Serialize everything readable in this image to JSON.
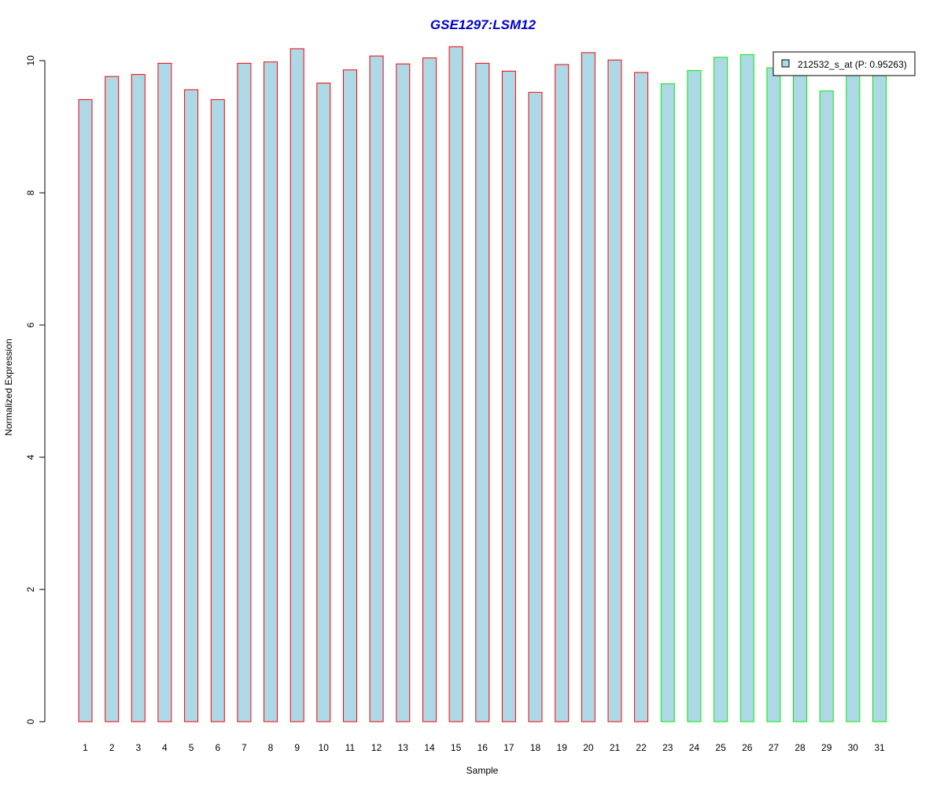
{
  "chart_data": {
    "type": "bar",
    "title": "GSE1297:LSM12",
    "xlabel": "Sample",
    "ylabel": "Normalized Expression",
    "ylim": [
      0,
      10
    ],
    "yticks": [
      "0",
      "2",
      "4",
      "6",
      "8",
      "10"
    ],
    "categories": [
      "1",
      "2",
      "3",
      "4",
      "5",
      "6",
      "7",
      "8",
      "9",
      "10",
      "11",
      "12",
      "13",
      "14",
      "15",
      "16",
      "17",
      "18",
      "19",
      "20",
      "21",
      "22",
      "23",
      "24",
      "25",
      "26",
      "27",
      "28",
      "29",
      "30",
      "31"
    ],
    "series": [
      {
        "name": "212532_s_at (P: 0.95263)",
        "values": [
          9.41,
          9.76,
          9.79,
          9.96,
          9.56,
          9.41,
          9.96,
          9.98,
          10.18,
          9.66,
          9.86,
          10.07,
          9.95,
          10.04,
          10.21,
          9.96,
          9.84,
          9.52,
          9.94,
          10.12,
          10.01,
          9.82,
          9.65,
          9.85,
          10.05,
          10.09,
          9.89,
          9.83,
          9.54,
          9.8,
          9.8
        ]
      }
    ],
    "group_colors": [
      "#ff0000",
      "#ff0000",
      "#ff0000",
      "#ff0000",
      "#ff0000",
      "#ff0000",
      "#ff0000",
      "#ff0000",
      "#ff0000",
      "#ff0000",
      "#ff0000",
      "#ff0000",
      "#ff0000",
      "#ff0000",
      "#ff0000",
      "#ff0000",
      "#ff0000",
      "#ff0000",
      "#ff0000",
      "#ff0000",
      "#ff0000",
      "#ff0000",
      "#00ee00",
      "#00ee00",
      "#00ee00",
      "#00ee00",
      "#00ee00",
      "#00ee00",
      "#00ee00",
      "#00ee00",
      "#00ee00"
    ],
    "bar_fill": "#add8e6",
    "title_color": "#0000cd",
    "legend": {
      "label": "212532_s_at (P: 0.95263)",
      "placement": "top-right"
    },
    "grid": false
  }
}
